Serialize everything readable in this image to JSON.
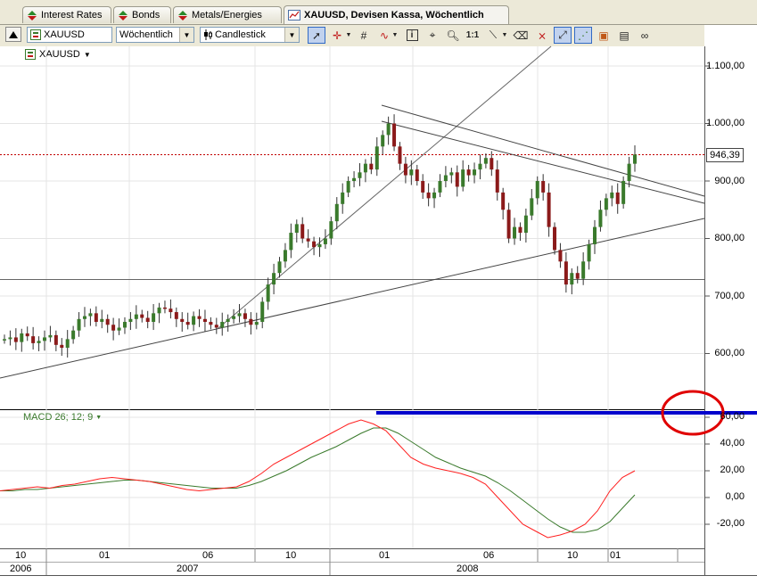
{
  "tabs": [
    {
      "label": "Interest Rates",
      "icon": "trend-arrows-icon"
    },
    {
      "label": "Bonds",
      "icon": "trend-arrows-icon"
    },
    {
      "label": "Metals/Energies",
      "icon": "trend-arrows-icon"
    },
    {
      "label": "XAUUSD, Devisen Kassa, Wöchentlich",
      "icon": "chart-icon"
    }
  ],
  "toolbar": {
    "symbol": "XAUUSD",
    "interval": "Wöchentlich",
    "chart_type": "Candlestick"
  },
  "instrument_label": "XAUUSD",
  "price_axis": {
    "ticks": [
      "1.100,00",
      "1.000,00",
      "900,00",
      "800,00",
      "700,00",
      "600,00"
    ],
    "current_price": "946,39"
  },
  "macd": {
    "label": "MACD 26; 12; 9",
    "ticks": [
      "60,00",
      "40,00",
      "20,00",
      "0,00",
      "-20,00"
    ]
  },
  "time_axis": {
    "months": [
      "10",
      "01",
      "06",
      "10",
      "01",
      "06",
      "10",
      "01"
    ],
    "years": [
      "2006",
      "2007",
      "2008"
    ]
  },
  "colors": {
    "up_candle": "#3a7a2c",
    "down_candle": "#8b1a1a",
    "macd_line": "#ff2020",
    "signal_line": "#3a7a2c",
    "current_price_line": "#c00000",
    "annotation_line": "#0000cc",
    "annotation_circle": "#e00000"
  }
}
